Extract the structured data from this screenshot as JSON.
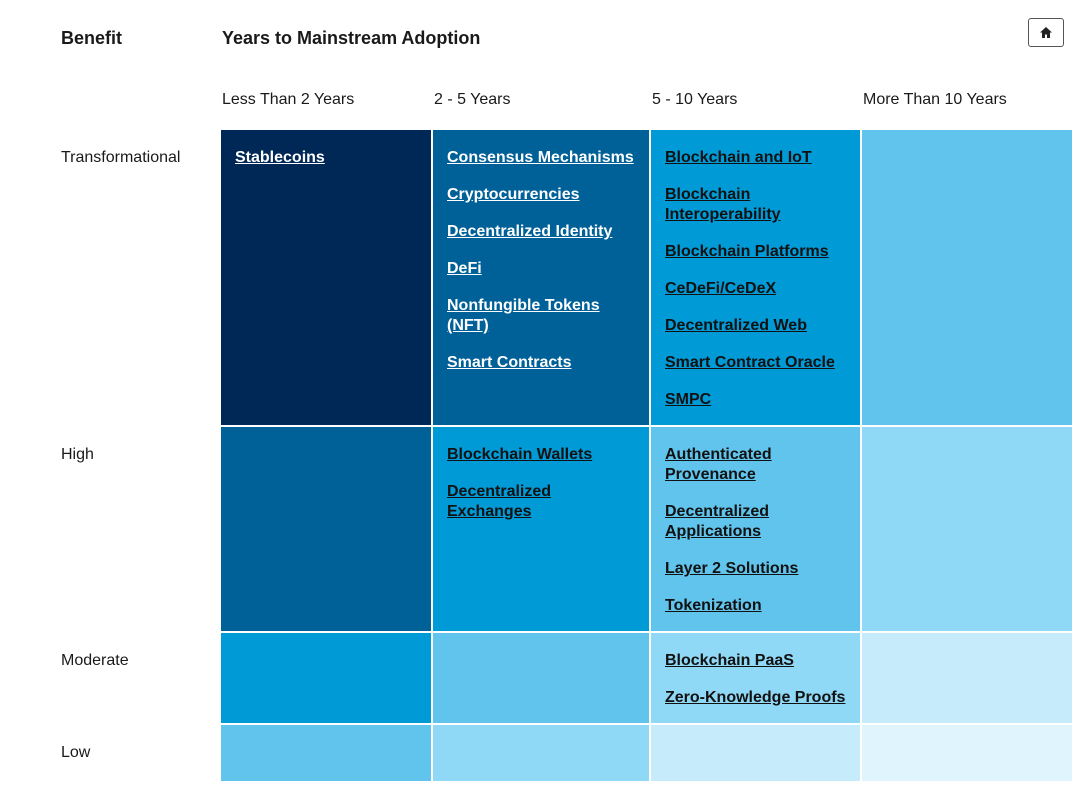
{
  "header": {
    "benefit_label": "Benefit",
    "title": "Years to Mainstream Adoption"
  },
  "home_button": {
    "icon": "home-icon"
  },
  "columns": [
    "Less Than 2 Years",
    "2 - 5 Years",
    "5 - 10 Years",
    "More Than 10 Years"
  ],
  "rows": [
    "Transformational",
    "High",
    "Moderate",
    "Low"
  ],
  "colors": {
    "darkest": "#002856",
    "dark": "#006098",
    "medium": "#009ad7",
    "light": "#60c4ec",
    "lighter": "#8fd9f7",
    "pale": "#c6ecfc",
    "palest": "#dff4fd"
  },
  "cells": {
    "transformational": {
      "lt2": [
        "Stablecoins"
      ],
      "y2to5": [
        "Consensus Mechanisms",
        "Cryptocurrencies",
        "Decentralized Identity",
        "DeFi",
        "Nonfungible Tokens (NFT)",
        "Smart Contracts"
      ],
      "y5to10": [
        "Blockchain and IoT",
        "Blockchain Interoperability",
        "Blockchain Platforms",
        "CeDeFi/CeDeX",
        "Decentralized Web",
        "Smart Contract Oracle",
        "SMPC"
      ],
      "gt10": []
    },
    "high": {
      "lt2": [],
      "y2to5": [
        "Blockchain Wallets",
        "Decentralized Exchanges"
      ],
      "y5to10": [
        "Authenticated Provenance",
        "Decentralized Applications",
        "Layer 2 Solutions",
        "Tokenization"
      ],
      "gt10": []
    },
    "moderate": {
      "lt2": [],
      "y2to5": [],
      "y5to10": [
        "Blockchain PaaS",
        "Zero-Knowledge Proofs"
      ],
      "gt10": []
    },
    "low": {
      "lt2": [],
      "y2to5": [],
      "y5to10": [],
      "gt10": []
    }
  }
}
